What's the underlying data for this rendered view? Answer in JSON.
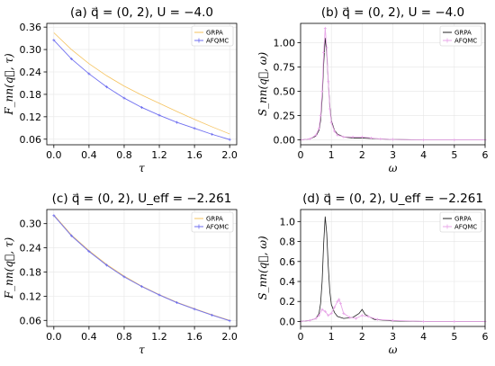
{
  "chart_data": [
    {
      "id": "a",
      "type": "line",
      "title": "(a)  q⃗ = (0, 2),  U = −4.0",
      "xlabel": "τ",
      "ylabel": "F_nn(q⃗, τ)",
      "xlim": [
        -0.08,
        2.08
      ],
      "ylim": [
        0.045,
        0.37
      ],
      "xticks": [
        0.0,
        0.4,
        0.8,
        1.2,
        1.6,
        2.0
      ],
      "xtick_labels": [
        "0.0",
        "0.4",
        "0.8",
        "1.2",
        "1.6",
        "2.0"
      ],
      "yticks": [
        0.06,
        0.12,
        0.18,
        0.24,
        0.3,
        0.36
      ],
      "ytick_labels": [
        "0.06",
        "0.12",
        "0.18",
        "0.24",
        "0.30",
        "0.36"
      ],
      "grid": true,
      "legend": "top-right",
      "series": [
        {
          "name": "GRPA",
          "color": "#f5c35f",
          "style": "line",
          "x": [
            0.0,
            0.2,
            0.4,
            0.6,
            0.8,
            1.0,
            1.2,
            1.4,
            1.6,
            1.8,
            2.0
          ],
          "values": [
            0.345,
            0.3,
            0.262,
            0.23,
            0.202,
            0.178,
            0.156,
            0.134,
            0.113,
            0.093,
            0.074
          ]
        },
        {
          "name": "AFQMC",
          "color": "#6f6ff0",
          "style": "errorbar",
          "x": [
            0.0,
            0.2,
            0.4,
            0.6,
            0.8,
            1.0,
            1.2,
            1.4,
            1.6,
            1.8,
            2.0
          ],
          "values": [
            0.325,
            0.275,
            0.235,
            0.2,
            0.17,
            0.145,
            0.124,
            0.105,
            0.089,
            0.073,
            0.059
          ]
        }
      ]
    },
    {
      "id": "b",
      "type": "line",
      "title": "(b)  q⃗ = (0, 2),  U = −4.0",
      "xlabel": "ω",
      "ylabel": "S_nn(q⃗, ω)",
      "xlim": [
        0,
        6
      ],
      "ylim": [
        -0.05,
        1.2
      ],
      "xticks": [
        0,
        1,
        2,
        3,
        4,
        5,
        6
      ],
      "xtick_labels": [
        "0",
        "1",
        "2",
        "3",
        "4",
        "5",
        "6"
      ],
      "yticks": [
        0.0,
        0.25,
        0.5,
        0.75,
        1.0
      ],
      "ytick_labels": [
        "0.00",
        "0.25",
        "0.50",
        "0.75",
        "1.00"
      ],
      "grid": true,
      "legend": "top-right",
      "series": [
        {
          "name": "GRPA",
          "color": "#222222",
          "style": "line",
          "x": [
            0.0,
            0.3,
            0.5,
            0.6,
            0.65,
            0.7,
            0.75,
            0.8,
            0.85,
            0.9,
            0.95,
            1.0,
            1.1,
            1.2,
            1.4,
            1.7,
            2.0,
            2.3,
            2.6,
            3.0,
            4.0,
            5.0,
            6.0
          ],
          "values": [
            0.0,
            0.01,
            0.04,
            0.1,
            0.2,
            0.42,
            0.78,
            1.05,
            0.9,
            0.6,
            0.35,
            0.2,
            0.1,
            0.06,
            0.03,
            0.02,
            0.02,
            0.015,
            0.01,
            0.005,
            0.0,
            0.0,
            0.0
          ]
        },
        {
          "name": "AFQMC",
          "color": "#e8a6e8",
          "style": "errorbar",
          "x": [
            0.0,
            0.3,
            0.5,
            0.6,
            0.65,
            0.7,
            0.75,
            0.8,
            0.85,
            0.9,
            0.95,
            1.0,
            1.1,
            1.2,
            1.4,
            1.7,
            2.0,
            2.3,
            2.6,
            3.0,
            4.0,
            5.0,
            6.0
          ],
          "values": [
            0.0,
            0.01,
            0.05,
            0.12,
            0.25,
            0.5,
            0.9,
            1.15,
            0.95,
            0.6,
            0.32,
            0.18,
            0.09,
            0.05,
            0.03,
            0.03,
            0.03,
            0.02,
            0.01,
            0.005,
            0.0,
            0.0,
            0.0
          ]
        }
      ]
    },
    {
      "id": "c",
      "type": "line",
      "title": "(c)  q⃗ = (0, 2),  U_eff = −2.261",
      "xlabel": "τ",
      "ylabel": "F_nn(q⃗, τ)",
      "xlim": [
        -0.08,
        2.08
      ],
      "ylim": [
        0.045,
        0.335
      ],
      "xticks": [
        0.0,
        0.4,
        0.8,
        1.2,
        1.6,
        2.0
      ],
      "xtick_labels": [
        "0.0",
        "0.4",
        "0.8",
        "1.2",
        "1.6",
        "2.0"
      ],
      "yticks": [
        0.06,
        0.12,
        0.18,
        0.24,
        0.3
      ],
      "ytick_labels": [
        "0.06",
        "0.12",
        "0.18",
        "0.24",
        "0.30"
      ],
      "grid": true,
      "legend": "top-right",
      "series": [
        {
          "name": "GRPA",
          "color": "#f5c35f",
          "style": "line",
          "x": [
            0.0,
            0.2,
            0.4,
            0.6,
            0.8,
            1.0,
            1.2,
            1.4,
            1.6,
            1.8,
            2.0
          ],
          "values": [
            0.322,
            0.272,
            0.233,
            0.199,
            0.17,
            0.145,
            0.124,
            0.105,
            0.089,
            0.074,
            0.06
          ]
        },
        {
          "name": "AFQMC",
          "color": "#6f6ff0",
          "style": "errorbar",
          "x": [
            0.0,
            0.2,
            0.4,
            0.6,
            0.8,
            1.0,
            1.2,
            1.4,
            1.6,
            1.8,
            2.0
          ],
          "values": [
            0.32,
            0.27,
            0.231,
            0.197,
            0.168,
            0.144,
            0.123,
            0.104,
            0.088,
            0.073,
            0.059
          ]
        }
      ]
    },
    {
      "id": "d",
      "type": "line",
      "title": "(d)  q⃗ = (0, 2),  U_eff = −2.261",
      "xlabel": "ω",
      "ylabel": "S_nn(q⃗, ω)",
      "xlim": [
        0,
        6
      ],
      "ylim": [
        -0.05,
        1.12
      ],
      "xticks": [
        0,
        1,
        2,
        3,
        4,
        5,
        6
      ],
      "xtick_labels": [
        "0",
        "1",
        "2",
        "3",
        "4",
        "5",
        "6"
      ],
      "yticks": [
        0.0,
        0.2,
        0.4,
        0.6,
        0.8,
        1.0
      ],
      "ytick_labels": [
        "0.0",
        "0.2",
        "0.4",
        "0.6",
        "0.8",
        "1.0"
      ],
      "grid": true,
      "legend": "top-right",
      "series": [
        {
          "name": "GRPA",
          "color": "#222222",
          "style": "line",
          "x": [
            0.0,
            0.3,
            0.5,
            0.6,
            0.65,
            0.7,
            0.75,
            0.8,
            0.85,
            0.9,
            0.95,
            1.0,
            1.1,
            1.2,
            1.4,
            1.7,
            1.9,
            2.0,
            2.1,
            2.4,
            3.0,
            4.0,
            5.0,
            6.0
          ],
          "values": [
            0.0,
            0.01,
            0.03,
            0.08,
            0.18,
            0.4,
            0.78,
            1.05,
            0.88,
            0.55,
            0.3,
            0.17,
            0.09,
            0.05,
            0.03,
            0.04,
            0.08,
            0.12,
            0.07,
            0.02,
            0.005,
            0.0,
            0.0,
            0.0
          ]
        },
        {
          "name": "AFQMC",
          "color": "#e8a6e8",
          "style": "errorbar",
          "x": [
            0.0,
            0.3,
            0.5,
            0.6,
            0.7,
            0.8,
            0.9,
            1.0,
            1.1,
            1.2,
            1.25,
            1.3,
            1.4,
            1.6,
            1.8,
            2.0,
            2.2,
            2.5,
            3.0,
            4.0,
            5.0,
            6.0
          ],
          "values": [
            0.0,
            0.01,
            0.03,
            0.06,
            0.12,
            0.1,
            0.06,
            0.08,
            0.14,
            0.2,
            0.22,
            0.18,
            0.08,
            0.04,
            0.03,
            0.06,
            0.05,
            0.02,
            0.01,
            0.0,
            0.0,
            0.0
          ]
        }
      ]
    }
  ]
}
